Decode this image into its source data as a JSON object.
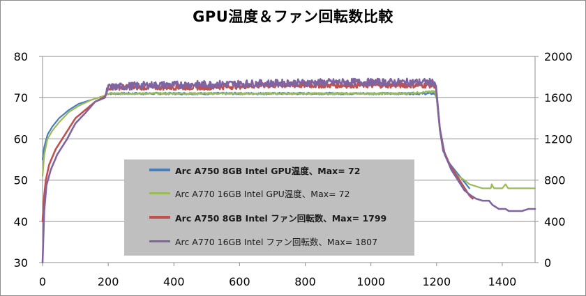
{
  "chart_data": {
    "type": "line",
    "title": "GPU温度＆ファン回転数比較",
    "xlim": [
      0,
      1500
    ],
    "x_ticks": [
      "0",
      "200",
      "400",
      "600",
      "800",
      "1000",
      "1200",
      "1400"
    ],
    "y_left_lim": [
      30,
      80
    ],
    "y_left_ticks": [
      "30",
      "40",
      "50",
      "60",
      "70",
      "80"
    ],
    "y_right_lim": [
      0,
      2000
    ],
    "y_right_ticks": [
      "0",
      "400",
      "800",
      "1200",
      "1600",
      "2000"
    ],
    "grid": "horizontal",
    "legend_position": "inside-bottom-left",
    "series": [
      {
        "name": "Arc A750 8GB Intel GPU温度、Max= 72",
        "axis": "left",
        "color": "#4a7ebb",
        "bold": true,
        "points": [
          [
            0,
            55
          ],
          [
            5,
            58
          ],
          [
            15,
            61
          ],
          [
            30,
            63
          ],
          [
            50,
            65
          ],
          [
            80,
            67
          ],
          [
            110,
            68.5
          ],
          [
            150,
            69.5
          ],
          [
            190,
            70.5
          ],
          [
            200,
            71
          ],
          [
            250,
            71
          ],
          [
            400,
            71
          ],
          [
            600,
            71
          ],
          [
            800,
            71
          ],
          [
            1000,
            71
          ],
          [
            1100,
            71
          ],
          [
            1195,
            71
          ],
          [
            1200,
            70
          ],
          [
            1210,
            62
          ],
          [
            1220,
            57
          ],
          [
            1240,
            54
          ],
          [
            1260,
            52
          ],
          [
            1280,
            50
          ],
          [
            1300,
            48
          ]
        ]
      },
      {
        "name": "Arc A770 16GB Intel GPU温度、Max= 72",
        "axis": "left",
        "color": "#9bbb59",
        "bold": false,
        "points": [
          [
            0,
            51
          ],
          [
            5,
            56
          ],
          [
            15,
            60
          ],
          [
            30,
            62
          ],
          [
            50,
            64
          ],
          [
            80,
            66.5
          ],
          [
            110,
            68
          ],
          [
            150,
            69.5
          ],
          [
            190,
            70.5
          ],
          [
            200,
            71
          ],
          [
            300,
            71
          ],
          [
            500,
            71
          ],
          [
            700,
            71
          ],
          [
            900,
            71
          ],
          [
            1100,
            71
          ],
          [
            1195,
            71.5
          ],
          [
            1200,
            70
          ],
          [
            1210,
            62
          ],
          [
            1225,
            56
          ],
          [
            1245,
            53
          ],
          [
            1265,
            51
          ],
          [
            1285,
            50
          ],
          [
            1300,
            49
          ],
          [
            1320,
            48.5
          ],
          [
            1340,
            48
          ],
          [
            1365,
            48
          ],
          [
            1368,
            49
          ],
          [
            1375,
            48
          ],
          [
            1400,
            48
          ],
          [
            1410,
            49
          ],
          [
            1418,
            48
          ],
          [
            1500,
            48
          ]
        ]
      },
      {
        "name": "Arc A750 8GB Intel ファン回転数、Max= 1799",
        "axis": "right",
        "color": "#c0504d",
        "bold": true,
        "points": [
          [
            0,
            400
          ],
          [
            5,
            650
          ],
          [
            10,
            800
          ],
          [
            20,
            950
          ],
          [
            40,
            1100
          ],
          [
            70,
            1250
          ],
          [
            100,
            1400
          ],
          [
            130,
            1480
          ],
          [
            160,
            1560
          ],
          [
            190,
            1610
          ],
          [
            200,
            1700
          ],
          [
            300,
            1700
          ],
          [
            500,
            1700
          ],
          [
            700,
            1720
          ],
          [
            900,
            1720
          ],
          [
            1100,
            1720
          ],
          [
            1195,
            1720
          ],
          [
            1200,
            1650
          ],
          [
            1210,
            1300
          ],
          [
            1220,
            1100
          ],
          [
            1240,
            950
          ],
          [
            1260,
            850
          ],
          [
            1280,
            750
          ],
          [
            1300,
            650
          ],
          [
            1310,
            620
          ]
        ]
      },
      {
        "name": "Arc A770 16GB Intel ファン回転数、Max= 1807",
        "axis": "right",
        "color": "#8064a2",
        "bold": false,
        "points": [
          [
            0,
            0
          ],
          [
            5,
            500
          ],
          [
            12,
            750
          ],
          [
            25,
            900
          ],
          [
            45,
            1050
          ],
          [
            75,
            1200
          ],
          [
            100,
            1350
          ],
          [
            130,
            1450
          ],
          [
            160,
            1560
          ],
          [
            190,
            1600
          ],
          [
            200,
            1700
          ],
          [
            300,
            1720
          ],
          [
            500,
            1730
          ],
          [
            700,
            1740
          ],
          [
            900,
            1750
          ],
          [
            1100,
            1750
          ],
          [
            1195,
            1750
          ],
          [
            1200,
            1650
          ],
          [
            1210,
            1300
          ],
          [
            1225,
            1050
          ],
          [
            1245,
            900
          ],
          [
            1265,
            800
          ],
          [
            1285,
            700
          ],
          [
            1305,
            650
          ],
          [
            1320,
            620
          ],
          [
            1340,
            600
          ],
          [
            1360,
            600
          ],
          [
            1370,
            560
          ],
          [
            1390,
            520
          ],
          [
            1410,
            520
          ],
          [
            1420,
            500
          ],
          [
            1440,
            500
          ],
          [
            1460,
            500
          ],
          [
            1480,
            520
          ],
          [
            1500,
            520
          ]
        ]
      }
    ]
  }
}
